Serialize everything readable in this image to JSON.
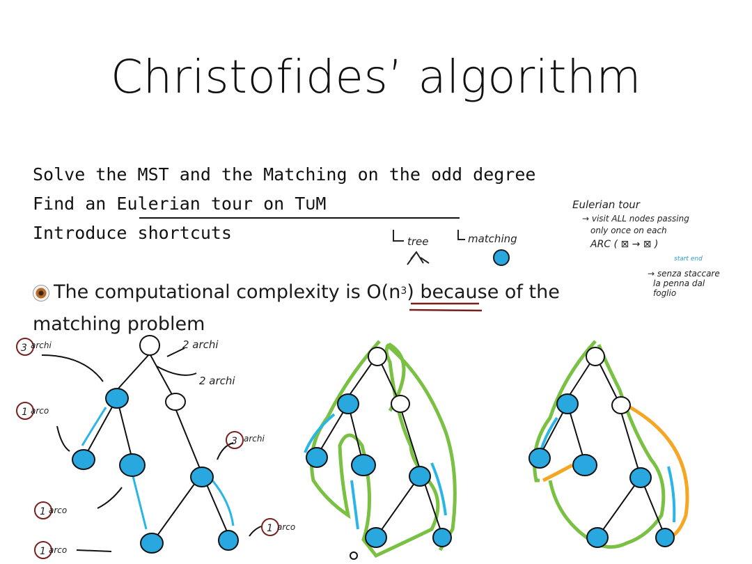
{
  "slide": {
    "title": "Christofides’ algorithm",
    "steps": [
      "Solve the MST and the Matching on the odd degree",
      "Find an Eulerian tour on T∪M",
      "Introduce shortcuts"
    ],
    "complexity_prefix": "The computational complexity is ",
    "complexity_big_o": "O(n",
    "complexity_exp": "3",
    "complexity_close": ")",
    "complexity_suffix": " because of the matching problem"
  },
  "annotations": {
    "tree_label": "tree",
    "matching_label": "matching",
    "eulerian_note": [
      "Eulerian tour",
      "→ visit ALL nodes passing",
      "only once on each",
      "ARC ( ⊠ → ⊠ )",
      "start end",
      "→ senza staccare",
      "la penna dal",
      "foglio"
    ],
    "degree_labels": {
      "root": "2 archi",
      "right_child": "2 archi",
      "left_child_count": "3",
      "left_child_word": "archi",
      "left_leaf_count": "1",
      "left_leaf_word": "arco",
      "right_mid_count": "3",
      "right_mid_word": "archi",
      "mid_leaf_count": "1",
      "mid_leaf_word": "arco",
      "bottom_left_count": "1",
      "bottom_left_word": "arco",
      "bottom_right_count": "1",
      "bottom_right_word": "arco"
    }
  },
  "colors": {
    "odd_node": "#29a8e0",
    "matching_edge": "#29b6e6",
    "euler_path": "#7ac143",
    "shortcut": "#f5a623",
    "underline": "#7a1f1f"
  }
}
